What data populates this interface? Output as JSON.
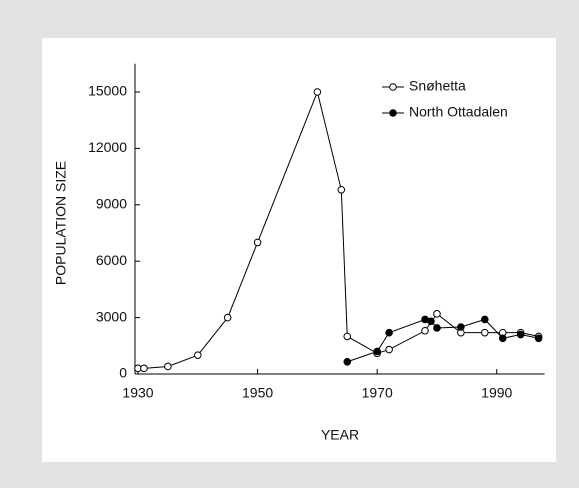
{
  "chart_data": {
    "type": "line",
    "xlabel": "YEAR",
    "ylabel": "POPULATION SIZE",
    "xlim": [
      1929.5,
      1998
    ],
    "xticks": [
      1930,
      1950,
      1970,
      1990
    ],
    "ylim": [
      0,
      16500
    ],
    "yticks": [
      0,
      3000,
      6000,
      9000,
      12000,
      15000
    ],
    "legend": "upper right",
    "grid": false,
    "series": [
      {
        "name": "Snøhetta",
        "color": "#000000",
        "marker": "open",
        "x": [
          1930,
          1931,
          1935,
          1940,
          1945,
          1950,
          1960,
          1964,
          1965,
          1970,
          1972,
          1978,
          1980,
          1984,
          1988,
          1991,
          1994,
          1997
        ],
        "values": [
          300,
          300,
          400,
          1000,
          3000,
          7000,
          15000,
          9800,
          2000,
          1100,
          1300,
          2300,
          3200,
          2200,
          2200,
          2200,
          2200,
          2000
        ]
      },
      {
        "name": "North Ottadalen",
        "color": "#000000",
        "marker": "filled",
        "x": [
          1965,
          1970,
          1972,
          1978,
          1979,
          1980,
          1984,
          1988,
          1991,
          1994,
          1997
        ],
        "values": [
          650,
          1200,
          2200,
          2900,
          2800,
          2450,
          2500,
          2900,
          1900,
          2100,
          1900
        ]
      }
    ]
  }
}
